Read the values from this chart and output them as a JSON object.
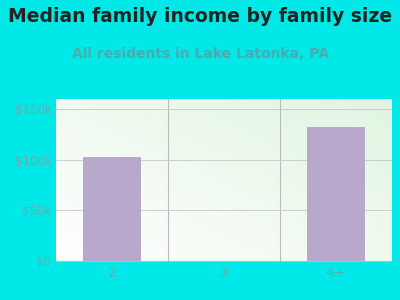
{
  "title": "Median family income by family size",
  "subtitle": "All residents in Lake Latonka, PA",
  "categories": [
    "2",
    "3",
    "4+"
  ],
  "values": [
    103000,
    0,
    132000
  ],
  "bar_color": "#b8a8cc",
  "title_fontsize": 13.5,
  "subtitle_fontsize": 10,
  "subtitle_color": "#4aacac",
  "title_color": "#222222",
  "outer_bg": "#00e8e8",
  "ylim": [
    0,
    160000
  ],
  "yticks": [
    0,
    50000,
    100000,
    150000
  ],
  "ytick_labels": [
    "$0",
    "$50k",
    "$100k",
    "$150k"
  ],
  "tick_color": "#6aabab",
  "axis_line_color": "#bbbbbb",
  "grid_color": "#cccccc"
}
